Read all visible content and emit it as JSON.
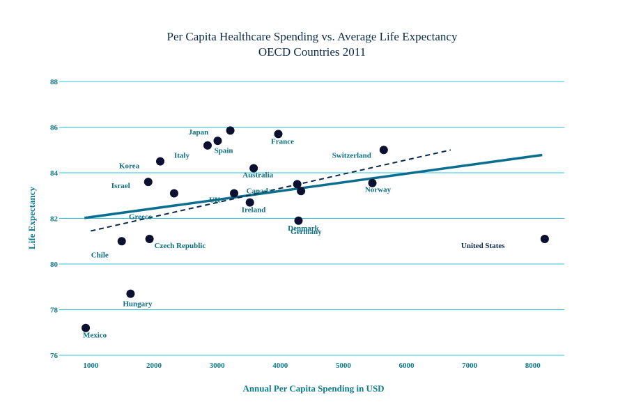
{
  "chart_data": {
    "type": "scatter",
    "title": "Per Capita Healthcare Spending vs. Average Life Expectancy",
    "subtitle": "OECD Countries 2011",
    "xlabel": "Annual Per Capita Spending in USD",
    "ylabel": "Life Expectancy",
    "xlim": [
      500,
      8500
    ],
    "ylim": [
      76,
      88
    ],
    "xticks": [
      1000,
      2000,
      3000,
      4000,
      5000,
      6000,
      7000,
      8000
    ],
    "yticks": [
      76,
      78,
      80,
      82,
      84,
      86,
      88
    ],
    "grid": "horizontal",
    "colors": {
      "points": "#0b1030",
      "title": "#0b2a4a",
      "axis_text": "#0e7a8a",
      "gridlines": "#2ec4d8",
      "trend_solid": "#0b6e8e",
      "trend_dashed": "#0b2a4a"
    },
    "points": [
      {
        "label": "Mexico",
        "x": 920,
        "y": 77.2
      },
      {
        "label": "Hungary",
        "x": 1630,
        "y": 78.7
      },
      {
        "label": "Chile",
        "x": 1490,
        "y": 81.0
      },
      {
        "label": "Czech Republic",
        "x": 1930,
        "y": 81.1
      },
      {
        "label": "Israel",
        "x": 1910,
        "y": 83.6
      },
      {
        "label": "Korea",
        "x": 2100,
        "y": 84.5
      },
      {
        "label": "Greece",
        "x": 2320,
        "y": 83.1
      },
      {
        "label": "Italy",
        "x": 2850,
        "y": 85.2
      },
      {
        "label": "Japan",
        "x": 3010,
        "y": 85.4
      },
      {
        "label": "Spain",
        "x": 3210,
        "y": 85.85
      },
      {
        "label": "UK",
        "x": 3270,
        "y": 83.1
      },
      {
        "label": "Ireland",
        "x": 3520,
        "y": 82.7
      },
      {
        "label": "Australia",
        "x": 3580,
        "y": 84.2
      },
      {
        "label": "France",
        "x": 3970,
        "y": 85.7
      },
      {
        "label": "Canada",
        "x": 4270,
        "y": 83.5
      },
      {
        "label": "Germany",
        "x": 4330,
        "y": 83.2
      },
      {
        "label": "Denmark",
        "x": 4290,
        "y": 81.9
      },
      {
        "label": "Norway",
        "x": 5460,
        "y": 83.55
      },
      {
        "label": "Switzerland",
        "x": 5640,
        "y": 85.0
      },
      {
        "label": "United States",
        "x": 8190,
        "y": 81.1
      }
    ],
    "trendlines": [
      {
        "style": "solid",
        "x": [
          900,
          8150
        ],
        "y": [
          82.02,
          84.78
        ]
      },
      {
        "style": "dashed",
        "x": [
          1000,
          6700
        ],
        "y": [
          81.45,
          85.0
        ]
      }
    ]
  }
}
